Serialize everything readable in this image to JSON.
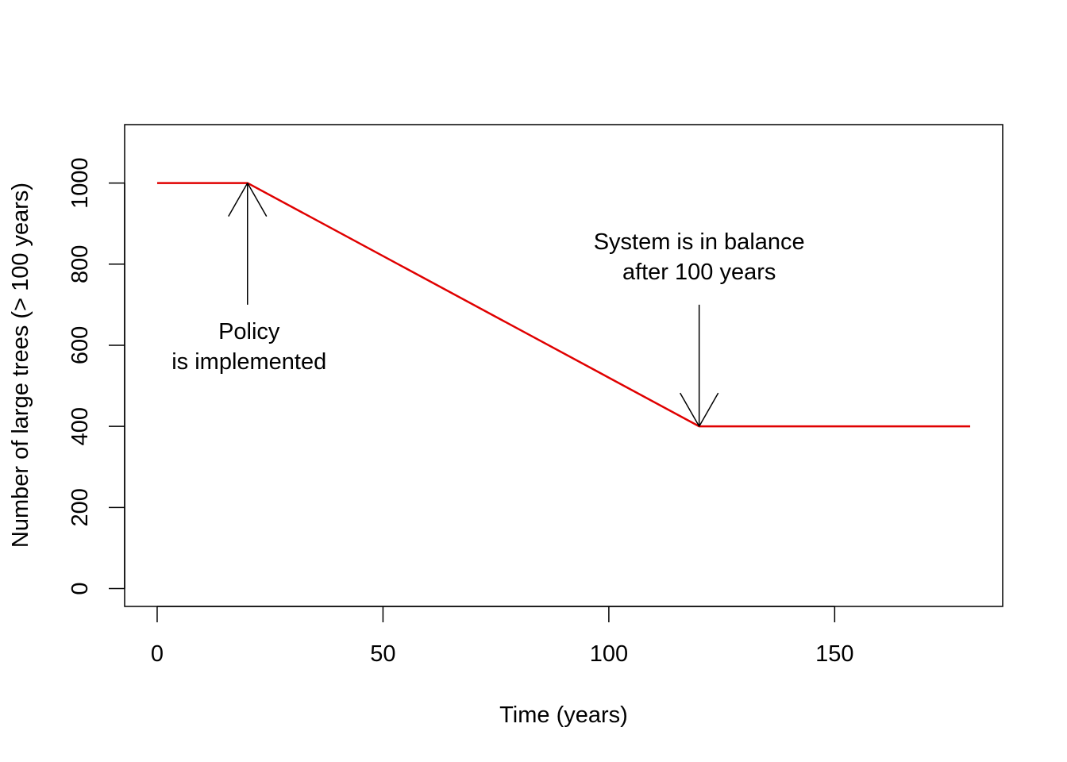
{
  "chart_data": {
    "type": "line",
    "title": "",
    "xlabel": "Time (years)",
    "ylabel": "Number of large trees (> 100 years)",
    "xlim": [
      -7.2,
      187.2
    ],
    "ylim": [
      -44,
      1144
    ],
    "x_ticks": [
      0,
      50,
      100,
      150
    ],
    "y_ticks": [
      0,
      200,
      400,
      600,
      800,
      1000
    ],
    "grid": false,
    "series": [
      {
        "color": "#e00000",
        "x": [
          0,
          20,
          120,
          180
        ],
        "y": [
          1000,
          1000,
          400,
          400
        ]
      }
    ],
    "annotations": [
      {
        "lines": [
          "Policy",
          "is implemented"
        ],
        "arrow_from": [
          20,
          700
        ],
        "arrow_to": [
          20,
          1000
        ]
      },
      {
        "lines": [
          "System is in balance",
          "after 100 years"
        ],
        "arrow_from": [
          120,
          700
        ],
        "arrow_to": [
          120,
          400
        ]
      }
    ]
  }
}
